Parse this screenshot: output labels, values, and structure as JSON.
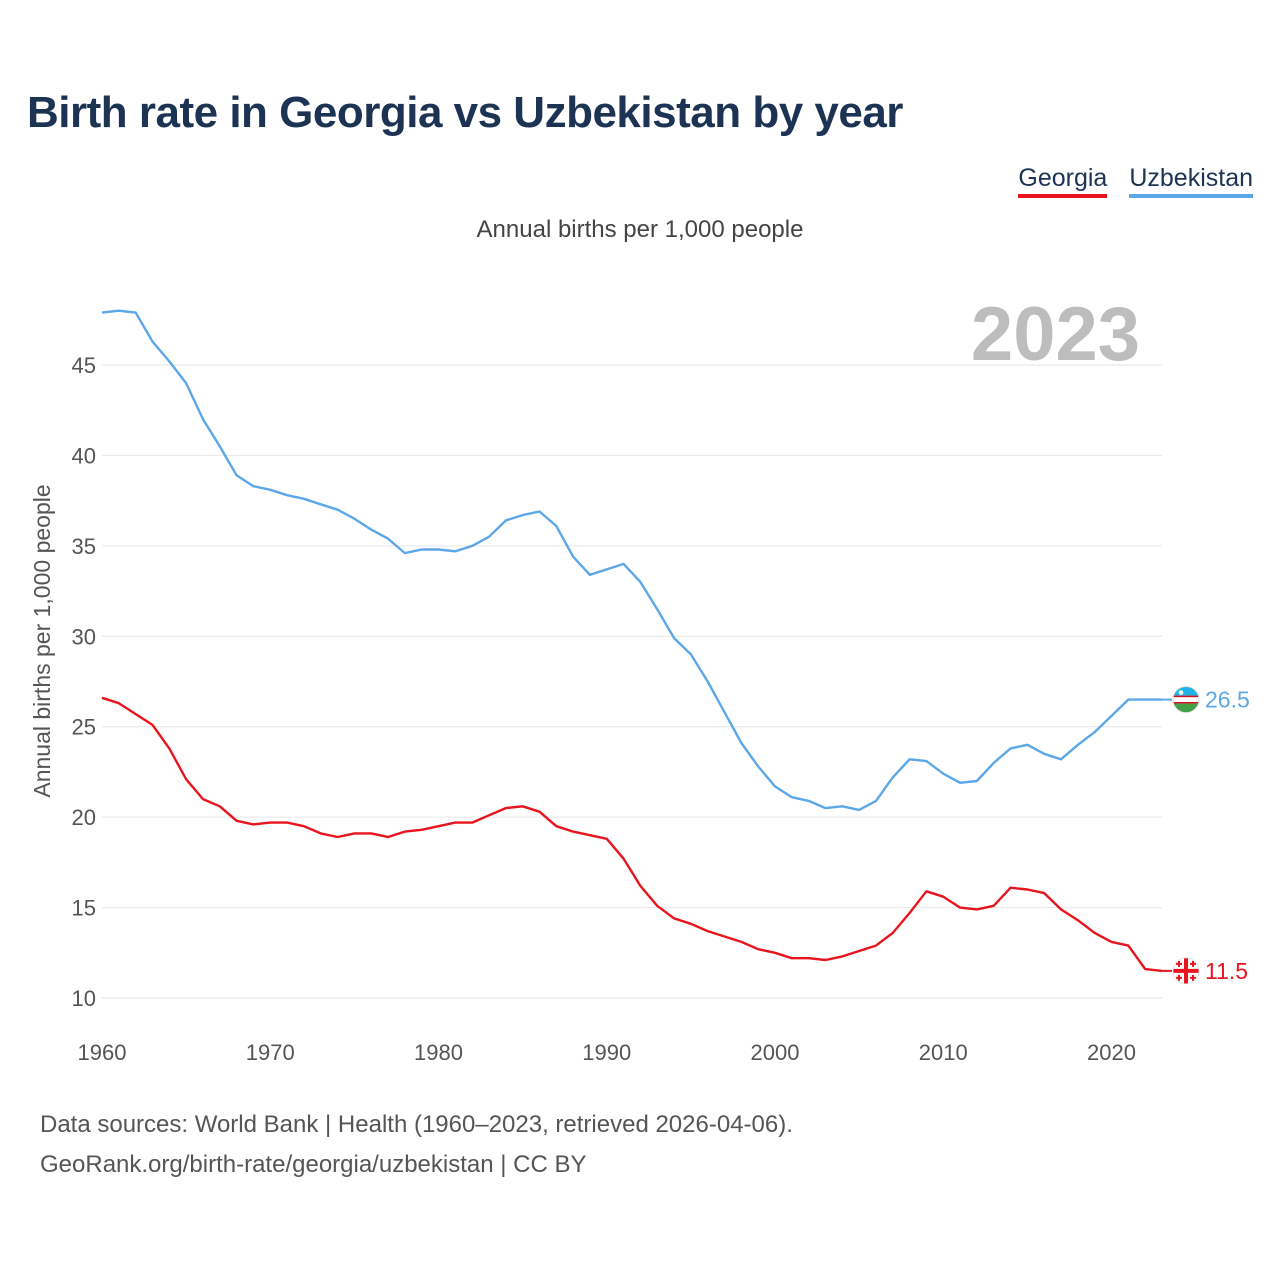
{
  "title": "Birth rate in Georgia vs Uzbekistan by year",
  "subtitle": "Annual births per 1,000 people",
  "source_line1": "Data sources: World Bank | Health (1960–2023, retrieved 2026-04-06).",
  "source_line2": "GeoRank.org/birth-rate/georgia/uzbekistan | CC BY",
  "chart_data": {
    "type": "line",
    "title": "Birth rate in Georgia vs Uzbekistan by year",
    "subtitle": "Annual births per 1,000 people",
    "xlabel": "",
    "ylabel": "Annual births per 1,000 people",
    "xlim": [
      1960,
      2023
    ],
    "ylim": [
      10,
      48
    ],
    "xticks": [
      1960,
      1970,
      1980,
      1990,
      2000,
      2010,
      2020
    ],
    "yticks": [
      10,
      15,
      20,
      25,
      30,
      35,
      40,
      45
    ],
    "grid": true,
    "legend_position": "top-right",
    "year_label": "2023",
    "x": [
      1960,
      1961,
      1962,
      1963,
      1964,
      1965,
      1966,
      1967,
      1968,
      1969,
      1970,
      1971,
      1972,
      1973,
      1974,
      1975,
      1976,
      1977,
      1978,
      1979,
      1980,
      1981,
      1982,
      1983,
      1984,
      1985,
      1986,
      1987,
      1988,
      1989,
      1990,
      1991,
      1992,
      1993,
      1994,
      1995,
      1996,
      1997,
      1998,
      1999,
      2000,
      2001,
      2002,
      2003,
      2004,
      2005,
      2006,
      2007,
      2008,
      2009,
      2010,
      2011,
      2012,
      2013,
      2014,
      2015,
      2016,
      2017,
      2018,
      2019,
      2020,
      2021,
      2022,
      2023
    ],
    "series": [
      {
        "name": "Georgia",
        "color": "#e8141e",
        "end_label": "11.5",
        "flag": "georgia-flag-icon",
        "values": [
          26.6,
          26.3,
          25.7,
          25.1,
          23.8,
          22.1,
          21.0,
          20.6,
          19.8,
          19.6,
          19.7,
          19.7,
          19.5,
          19.1,
          18.9,
          19.1,
          19.1,
          18.9,
          19.2,
          19.3,
          19.5,
          19.7,
          19.7,
          20.1,
          20.5,
          20.6,
          20.3,
          19.5,
          19.2,
          19.0,
          18.8,
          17.7,
          16.2,
          15.1,
          14.4,
          14.1,
          13.7,
          13.4,
          13.1,
          12.7,
          12.5,
          12.2,
          12.2,
          12.1,
          12.3,
          12.6,
          12.9,
          13.6,
          14.7,
          15.9,
          15.6,
          15.0,
          14.9,
          15.1,
          16.1,
          16.0,
          15.8,
          14.9,
          14.3,
          13.6,
          13.1,
          12.9,
          11.6,
          11.5
        ]
      },
      {
        "name": "Uzbekistan",
        "color": "#5ca7e8",
        "end_label": "26.5",
        "flag": "uzbekistan-flag-icon",
        "values": [
          47.9,
          48.0,
          47.9,
          46.3,
          45.2,
          44.0,
          42.0,
          40.5,
          38.9,
          38.3,
          38.1,
          37.8,
          37.6,
          37.3,
          37.0,
          36.5,
          35.9,
          35.4,
          34.6,
          34.8,
          34.8,
          34.7,
          35.0,
          35.5,
          36.4,
          36.7,
          36.9,
          36.1,
          34.4,
          33.4,
          33.7,
          34.0,
          33.0,
          31.5,
          29.9,
          29.0,
          27.5,
          25.8,
          24.1,
          22.8,
          21.7,
          21.1,
          20.9,
          20.5,
          20.6,
          20.4,
          20.9,
          22.2,
          23.2,
          23.1,
          22.4,
          21.9,
          22.0,
          23.0,
          23.8,
          24.0,
          23.5,
          23.2,
          24.0,
          24.7,
          25.6,
          26.5,
          26.5,
          26.5
        ]
      }
    ]
  }
}
